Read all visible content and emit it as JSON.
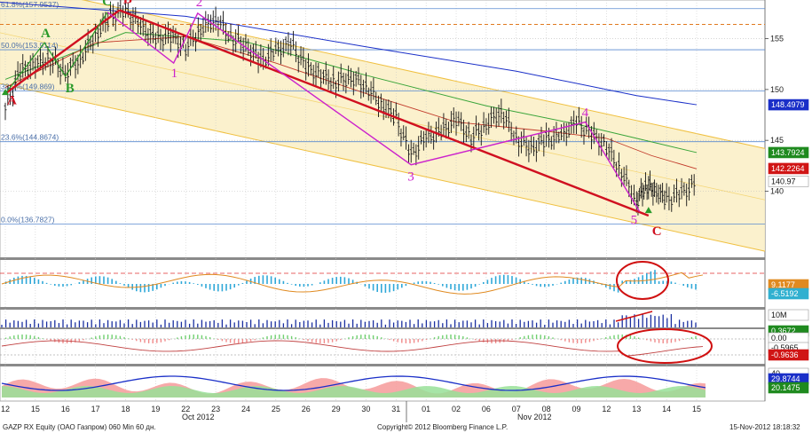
{
  "chart_data": {
    "type": "line",
    "instrument": "GAZP RX Equity (ОАО Газпром) 060 Min 60 дн.",
    "copyright": "Copyright© 2012 Bloomberg Finance L.P.",
    "timestamp": "15-Nov-2012 18:18:32",
    "x_ticks": [
      "12",
      "15",
      "16",
      "17",
      "18",
      "19",
      "22",
      "23",
      "24",
      "25",
      "26",
      "29",
      "30",
      "31",
      "01",
      "02",
      "06",
      "07",
      "08",
      "09",
      "12",
      "13",
      "14",
      "15"
    ],
    "month_labels": [
      "Oct 2012",
      "Nov 2012"
    ],
    "price_axis": {
      "ylim": [
        133.5,
        158.8
      ],
      "ticks": [
        "155",
        "150",
        "145",
        "140"
      ]
    },
    "fib_levels": [
      {
        "label": "61.8%(157.9537)",
        "value": 157.95
      },
      {
        "label": "50.0%(153.9114)",
        "value": 153.91
      },
      {
        "label": "38.2%(149.869)",
        "value": 149.87
      },
      {
        "label": "23.6%(144.8674)",
        "value": 144.87
      },
      {
        "label": "0.0%(136.7827)",
        "value": 136.78
      }
    ],
    "price": [
      [
        0,
        148.2
      ],
      [
        0.5,
        151.8
      ],
      [
        1,
        152.5
      ],
      [
        1.5,
        153.0
      ],
      [
        2,
        151.6
      ],
      [
        2.5,
        153.1
      ],
      [
        3,
        155.4
      ],
      [
        3.5,
        157.2
      ],
      [
        4,
        157.8
      ],
      [
        4.5,
        156.2
      ],
      [
        5,
        154.9
      ],
      [
        5.5,
        155.3
      ],
      [
        6,
        154.1
      ],
      [
        6.5,
        156.0
      ],
      [
        7,
        157.0
      ],
      [
        7.5,
        155.2
      ],
      [
        8,
        154.3
      ],
      [
        8.5,
        152.8
      ],
      [
        9,
        153.8
      ],
      [
        9.5,
        154.5
      ],
      [
        10,
        152.2
      ],
      [
        10.5,
        151.4
      ],
      [
        11,
        150.8
      ],
      [
        11.5,
        151.2
      ],
      [
        12,
        150.4
      ],
      [
        12.5,
        148.6
      ],
      [
        13,
        147.2
      ],
      [
        13.5,
        143.5
      ],
      [
        14,
        145.3
      ],
      [
        14.5,
        145.8
      ],
      [
        15,
        147.1
      ],
      [
        15.5,
        145.3
      ],
      [
        16,
        146.6
      ],
      [
        16.5,
        147.9
      ],
      [
        17,
        145.2
      ],
      [
        17.5,
        144.2
      ],
      [
        18,
        145.1
      ],
      [
        18.5,
        145.4
      ],
      [
        19,
        146.8
      ],
      [
        19.5,
        145.6
      ],
      [
        20,
        144.4
      ],
      [
        20.5,
        142.0
      ],
      [
        21,
        139.0
      ],
      [
        21.3,
        140.6
      ],
      [
        21.6,
        140.2
      ],
      [
        22,
        139.2
      ],
      [
        22.5,
        139.8
      ],
      [
        23,
        140.8
      ]
    ],
    "wave_points": [
      {
        "label": "A",
        "x": 0,
        "y": 149.6,
        "color": "#d01020"
      },
      {
        "label": "A",
        "x": 1.3,
        "y": 154.6,
        "color": "#2a9a2a"
      },
      {
        "label": "B",
        "x": 2.0,
        "y": 151.3,
        "color": "#2a9a2a"
      },
      {
        "label": "C",
        "x": 3.4,
        "y": 157.6,
        "color": "#2a9a2a"
      },
      {
        "label": "B",
        "x": 3.8,
        "y": 157.8,
        "color": "#d01020"
      },
      {
        "label": "1",
        "x": 5.6,
        "y": 152.6,
        "color": "#cc22cc"
      },
      {
        "label": "2",
        "x": 6.4,
        "y": 157.5,
        "color": "#cc22cc"
      },
      {
        "label": "3",
        "x": 13.5,
        "y": 142.6,
        "color": "#cc22cc"
      },
      {
        "label": "4",
        "x": 19.3,
        "y": 146.8,
        "color": "#cc22cc"
      },
      {
        "label": "5",
        "x": 21.1,
        "y": 138.0,
        "color": "#cc22cc"
      },
      {
        "label": "C",
        "x": 21.4,
        "y": 137.6,
        "color": "#d01020"
      }
    ],
    "price_tags": [
      {
        "label": "148.4979",
        "value": 148.5,
        "color": "#1a2fc8"
      },
      {
        "label": "143.7924",
        "value": 143.8,
        "color": "#1f8a1f"
      },
      {
        "label": "142.2264",
        "value": 142.23,
        "color": "#d01515"
      },
      {
        "label": "140.97",
        "value": 140.97,
        "color": "#ffffff"
      }
    ],
    "panel_tags": [
      {
        "label": "9.1177",
        "color": "#e08a20"
      },
      {
        "label": "-6.5192",
        "color": "#30b0d0"
      },
      {
        "label": "10M",
        "color": "#ffffff"
      },
      {
        "label": "0.3672",
        "color": "#1f8a1f"
      },
      {
        "label": "0.00",
        "color": "#ffffff"
      },
      {
        "label": "-0.5965",
        "color": "#ffffff"
      },
      {
        "label": "-0.9636",
        "color": "#d01515"
      },
      {
        "label": "40",
        "color": "#ffffff"
      },
      {
        "label": "29.8744",
        "color": "#1a2fc8"
      },
      {
        "label": "20.1475",
        "color": "#1f8a1f"
      }
    ],
    "grid": true
  }
}
